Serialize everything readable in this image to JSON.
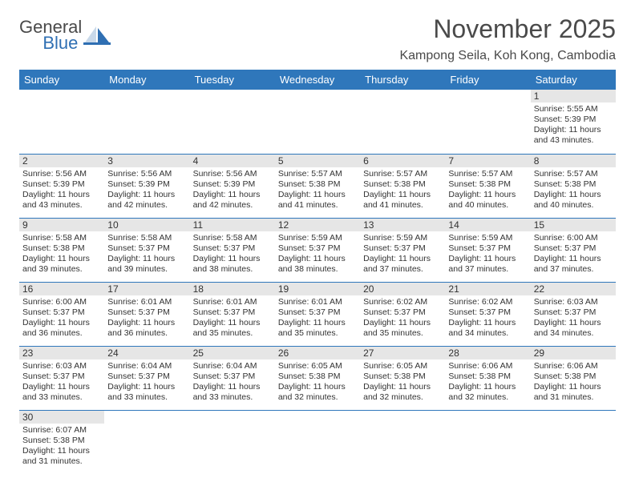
{
  "logo": {
    "text1": "General",
    "text2": "Blue"
  },
  "title": "November 2025",
  "location": "Kampong Seila, Koh Kong, Cambodia",
  "colors": {
    "header_bg": "#2f77bb",
    "header_text": "#ffffff",
    "daynum_bg": "#e6e6e6",
    "border": "#2f77bb",
    "body_bg": "#ffffff",
    "text": "#333333"
  },
  "daysOfWeek": [
    "Sunday",
    "Monday",
    "Tuesday",
    "Wednesday",
    "Thursday",
    "Friday",
    "Saturday"
  ],
  "weeks": [
    [
      null,
      null,
      null,
      null,
      null,
      null,
      {
        "n": "1",
        "sr": "5:55 AM",
        "ss": "5:39 PM",
        "dl": "11 hours and 43 minutes."
      }
    ],
    [
      {
        "n": "2",
        "sr": "5:56 AM",
        "ss": "5:39 PM",
        "dl": "11 hours and 43 minutes."
      },
      {
        "n": "3",
        "sr": "5:56 AM",
        "ss": "5:39 PM",
        "dl": "11 hours and 42 minutes."
      },
      {
        "n": "4",
        "sr": "5:56 AM",
        "ss": "5:39 PM",
        "dl": "11 hours and 42 minutes."
      },
      {
        "n": "5",
        "sr": "5:57 AM",
        "ss": "5:38 PM",
        "dl": "11 hours and 41 minutes."
      },
      {
        "n": "6",
        "sr": "5:57 AM",
        "ss": "5:38 PM",
        "dl": "11 hours and 41 minutes."
      },
      {
        "n": "7",
        "sr": "5:57 AM",
        "ss": "5:38 PM",
        "dl": "11 hours and 40 minutes."
      },
      {
        "n": "8",
        "sr": "5:57 AM",
        "ss": "5:38 PM",
        "dl": "11 hours and 40 minutes."
      }
    ],
    [
      {
        "n": "9",
        "sr": "5:58 AM",
        "ss": "5:38 PM",
        "dl": "11 hours and 39 minutes."
      },
      {
        "n": "10",
        "sr": "5:58 AM",
        "ss": "5:37 PM",
        "dl": "11 hours and 39 minutes."
      },
      {
        "n": "11",
        "sr": "5:58 AM",
        "ss": "5:37 PM",
        "dl": "11 hours and 38 minutes."
      },
      {
        "n": "12",
        "sr": "5:59 AM",
        "ss": "5:37 PM",
        "dl": "11 hours and 38 minutes."
      },
      {
        "n": "13",
        "sr": "5:59 AM",
        "ss": "5:37 PM",
        "dl": "11 hours and 37 minutes."
      },
      {
        "n": "14",
        "sr": "5:59 AM",
        "ss": "5:37 PM",
        "dl": "11 hours and 37 minutes."
      },
      {
        "n": "15",
        "sr": "6:00 AM",
        "ss": "5:37 PM",
        "dl": "11 hours and 37 minutes."
      }
    ],
    [
      {
        "n": "16",
        "sr": "6:00 AM",
        "ss": "5:37 PM",
        "dl": "11 hours and 36 minutes."
      },
      {
        "n": "17",
        "sr": "6:01 AM",
        "ss": "5:37 PM",
        "dl": "11 hours and 36 minutes."
      },
      {
        "n": "18",
        "sr": "6:01 AM",
        "ss": "5:37 PM",
        "dl": "11 hours and 35 minutes."
      },
      {
        "n": "19",
        "sr": "6:01 AM",
        "ss": "5:37 PM",
        "dl": "11 hours and 35 minutes."
      },
      {
        "n": "20",
        "sr": "6:02 AM",
        "ss": "5:37 PM",
        "dl": "11 hours and 35 minutes."
      },
      {
        "n": "21",
        "sr": "6:02 AM",
        "ss": "5:37 PM",
        "dl": "11 hours and 34 minutes."
      },
      {
        "n": "22",
        "sr": "6:03 AM",
        "ss": "5:37 PM",
        "dl": "11 hours and 34 minutes."
      }
    ],
    [
      {
        "n": "23",
        "sr": "6:03 AM",
        "ss": "5:37 PM",
        "dl": "11 hours and 33 minutes."
      },
      {
        "n": "24",
        "sr": "6:04 AM",
        "ss": "5:37 PM",
        "dl": "11 hours and 33 minutes."
      },
      {
        "n": "25",
        "sr": "6:04 AM",
        "ss": "5:37 PM",
        "dl": "11 hours and 33 minutes."
      },
      {
        "n": "26",
        "sr": "6:05 AM",
        "ss": "5:38 PM",
        "dl": "11 hours and 32 minutes."
      },
      {
        "n": "27",
        "sr": "6:05 AM",
        "ss": "5:38 PM",
        "dl": "11 hours and 32 minutes."
      },
      {
        "n": "28",
        "sr": "6:06 AM",
        "ss": "5:38 PM",
        "dl": "11 hours and 32 minutes."
      },
      {
        "n": "29",
        "sr": "6:06 AM",
        "ss": "5:38 PM",
        "dl": "11 hours and 31 minutes."
      }
    ],
    [
      {
        "n": "30",
        "sr": "6:07 AM",
        "ss": "5:38 PM",
        "dl": "11 hours and 31 minutes."
      },
      null,
      null,
      null,
      null,
      null,
      null
    ]
  ],
  "labels": {
    "sunrise": "Sunrise: ",
    "sunset": "Sunset: ",
    "daylight": "Daylight: "
  }
}
